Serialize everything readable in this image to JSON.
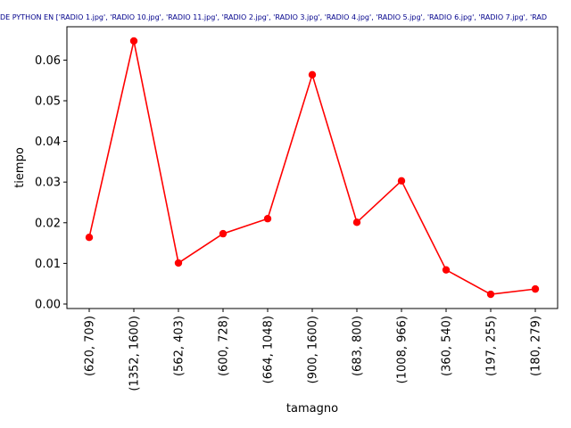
{
  "chart_data": {
    "type": "line",
    "title": "DE PYTHON EN ['RADIO 1.jpg', 'RADIO 10.jpg', 'RADIO 11.jpg', 'RADIO 2.jpg', 'RADIO 3.jpg', 'RADIO 4.jpg', 'RADIO 5.jpg', 'RADIO 6.jpg', 'RADIO 7.jpg', 'RAD",
    "xlabel": "tamagno",
    "ylabel": "tiempo",
    "categories": [
      "(620, 709)",
      "(1352, 1600)",
      "(562, 403)",
      "(600, 728)",
      "(664, 1048)",
      "(900, 1600)",
      "(683, 800)",
      "(1008, 966)",
      "(360, 540)",
      "(197, 255)",
      "(180, 279)"
    ],
    "series": [
      {
        "values": [
          0.0164,
          0.0647,
          0.0101,
          0.0173,
          0.021,
          0.0564,
          0.0201,
          0.0303,
          0.0084,
          0.0024,
          0.0037
        ],
        "color": "#ff0000",
        "marker": "circle"
      }
    ],
    "ylim": [
      -0.0011,
      0.0682
    ],
    "yticks": [
      0.0,
      0.01,
      0.02,
      0.03,
      0.04,
      0.05,
      0.06
    ],
    "ytick_labels": [
      "0.00",
      "0.01",
      "0.02",
      "0.03",
      "0.04",
      "0.05",
      "0.06"
    ],
    "grid": false,
    "legend": false
  }
}
